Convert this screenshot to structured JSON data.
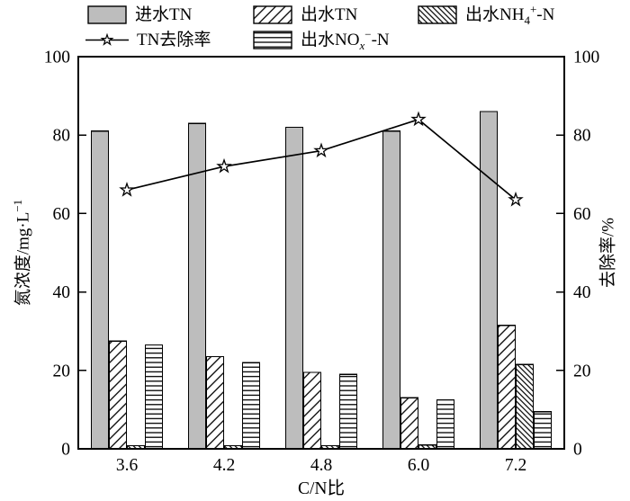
{
  "legend": {
    "items": [
      {
        "label": "进水TN",
        "swatch": "solid-gray"
      },
      {
        "label": "出水TN",
        "swatch": "diagonal"
      },
      {
        "label_pre": "出水NH",
        "label_sub": "4",
        "label_sup": "+",
        "label_post": "-N",
        "swatch": "dense-backslash"
      },
      {
        "label": "TN去除率",
        "swatch": "line-star"
      },
      {
        "label_pre": "出水NO",
        "label_sub": "x",
        "label_sup": "−",
        "label_post": "-N",
        "swatch": "horizontal-lines"
      }
    ]
  },
  "chart_data": {
    "type": "bar+line",
    "categories": [
      "3.6",
      "4.2",
      "4.8",
      "6.0",
      "7.2"
    ],
    "x_axis": {
      "label": "C/N比"
    },
    "left_axis": {
      "label_main": "氮浓度/mg·L",
      "label_sup": "−1",
      "range": [
        0,
        100
      ],
      "ticks": [
        0,
        20,
        40,
        60,
        80,
        100
      ]
    },
    "right_axis": {
      "label": "去除率/%",
      "range": [
        0,
        100
      ],
      "ticks": [
        0,
        20,
        40,
        60,
        80,
        100
      ]
    },
    "bar_series": [
      {
        "name": "进水TN",
        "pattern": "solid-gray",
        "values": [
          81,
          83,
          82,
          81,
          86
        ]
      },
      {
        "name": "出水TN",
        "pattern": "diagonal",
        "values": [
          27.5,
          23.5,
          19.5,
          13,
          31.5
        ]
      },
      {
        "name": "出水NH₄⁺-N",
        "pattern": "dense-backslash",
        "values": [
          0.8,
          0.8,
          0.8,
          1,
          21.5
        ]
      },
      {
        "name": "出水NOₓ⁻-N",
        "pattern": "horizontal-lines",
        "values": [
          26.5,
          22,
          19,
          12.5,
          9.5
        ]
      }
    ],
    "line_series": [
      {
        "name": "TN去除率",
        "axis": "right",
        "marker": "open-star",
        "values": [
          66,
          72,
          76,
          84,
          63.5
        ]
      }
    ],
    "colors": {
      "bar_fill": "#bdbdbd",
      "stroke": "#000000",
      "line": "#000000",
      "marker_fill": "#ffffff"
    },
    "legend_position": "top",
    "grid": false
  }
}
